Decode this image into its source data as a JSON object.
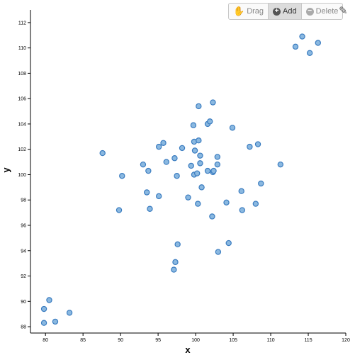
{
  "toolbar": {
    "drag_label": "Drag",
    "add_label": "Add",
    "delete_label": "Delete",
    "active_tool": "add"
  },
  "chart_data": {
    "type": "scatter",
    "xlabel": "x",
    "ylabel": "y",
    "xlim": [
      78,
      120
    ],
    "ylim": [
      87.5,
      113
    ],
    "xticks": [
      80,
      85,
      90,
      95,
      100,
      105,
      110,
      115,
      120
    ],
    "yticks": [
      88,
      90,
      92,
      94,
      96,
      98,
      100,
      102,
      104,
      106,
      108,
      110,
      112
    ],
    "grid": false,
    "marker_fill": "#8ab8e0",
    "marker_stroke": "#3a7cc0",
    "points": [
      {
        "x": 79.8,
        "y": 88.3
      },
      {
        "x": 81.3,
        "y": 88.4
      },
      {
        "x": 79.8,
        "y": 89.4
      },
      {
        "x": 80.5,
        "y": 90.1
      },
      {
        "x": 83.2,
        "y": 89.1
      },
      {
        "x": 87.6,
        "y": 101.7
      },
      {
        "x": 90.2,
        "y": 99.9
      },
      {
        "x": 89.8,
        "y": 97.2
      },
      {
        "x": 93.0,
        "y": 100.8
      },
      {
        "x": 93.7,
        "y": 100.3
      },
      {
        "x": 93.5,
        "y": 98.6
      },
      {
        "x": 93.9,
        "y": 97.3
      },
      {
        "x": 95.1,
        "y": 102.2
      },
      {
        "x": 95.7,
        "y": 102.5
      },
      {
        "x": 96.1,
        "y": 101.0
      },
      {
        "x": 95.1,
        "y": 98.3
      },
      {
        "x": 97.2,
        "y": 101.3
      },
      {
        "x": 97.5,
        "y": 99.9
      },
      {
        "x": 98.2,
        "y": 102.1
      },
      {
        "x": 99.0,
        "y": 98.2
      },
      {
        "x": 99.7,
        "y": 103.9
      },
      {
        "x": 100.4,
        "y": 105.4
      },
      {
        "x": 99.8,
        "y": 102.6
      },
      {
        "x": 100.4,
        "y": 102.7
      },
      {
        "x": 99.9,
        "y": 101.9
      },
      {
        "x": 100.6,
        "y": 101.5
      },
      {
        "x": 99.4,
        "y": 100.7
      },
      {
        "x": 100.6,
        "y": 100.9
      },
      {
        "x": 99.8,
        "y": 100.0
      },
      {
        "x": 100.2,
        "y": 100.1
      },
      {
        "x": 100.8,
        "y": 99.0
      },
      {
        "x": 100.3,
        "y": 97.7
      },
      {
        "x": 101.6,
        "y": 104.0
      },
      {
        "x": 101.9,
        "y": 104.2
      },
      {
        "x": 102.3,
        "y": 105.7
      },
      {
        "x": 101.6,
        "y": 100.3
      },
      {
        "x": 102.3,
        "y": 100.2
      },
      {
        "x": 102.4,
        "y": 100.3
      },
      {
        "x": 102.9,
        "y": 101.4
      },
      {
        "x": 102.9,
        "y": 100.8
      },
      {
        "x": 102.2,
        "y": 96.7
      },
      {
        "x": 104.9,
        "y": 103.7
      },
      {
        "x": 104.1,
        "y": 97.8
      },
      {
        "x": 106.1,
        "y": 98.7
      },
      {
        "x": 106.2,
        "y": 97.2
      },
      {
        "x": 107.2,
        "y": 102.2
      },
      {
        "x": 108.3,
        "y": 102.4
      },
      {
        "x": 108.0,
        "y": 97.7
      },
      {
        "x": 108.7,
        "y": 99.3
      },
      {
        "x": 111.3,
        "y": 100.8
      },
      {
        "x": 97.6,
        "y": 94.5
      },
      {
        "x": 97.3,
        "y": 93.1
      },
      {
        "x": 97.1,
        "y": 92.5
      },
      {
        "x": 103.0,
        "y": 93.9
      },
      {
        "x": 104.4,
        "y": 94.6
      },
      {
        "x": 113.3,
        "y": 110.1
      },
      {
        "x": 114.2,
        "y": 110.9
      },
      {
        "x": 115.2,
        "y": 109.6
      },
      {
        "x": 116.3,
        "y": 110.4
      }
    ]
  }
}
